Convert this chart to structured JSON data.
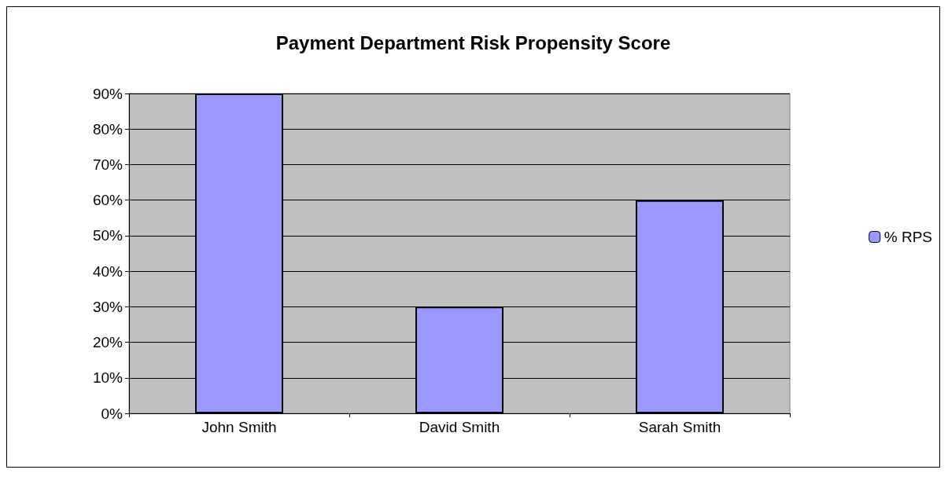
{
  "chart_data": {
    "type": "bar",
    "title": "Payment Department Risk Propensity Score",
    "categories": [
      "John Smith",
      "David Smith",
      "Sarah Smith"
    ],
    "series": [
      {
        "name": "% RPS",
        "color": "#9999ff",
        "values": [
          90,
          30,
          60
        ]
      }
    ],
    "ylim": [
      0,
      90
    ],
    "yticks": [
      {
        "value": 0,
        "label": "0%"
      },
      {
        "value": 10,
        "label": "10%"
      },
      {
        "value": 20,
        "label": "20%"
      },
      {
        "value": 30,
        "label": "30%"
      },
      {
        "value": 40,
        "label": "40%"
      },
      {
        "value": 50,
        "label": "50%"
      },
      {
        "value": 60,
        "label": "60%"
      },
      {
        "value": 70,
        "label": "70%"
      },
      {
        "value": 80,
        "label": "80%"
      },
      {
        "value": 90,
        "label": "90%"
      }
    ],
    "grid": "y",
    "legend": "right"
  }
}
